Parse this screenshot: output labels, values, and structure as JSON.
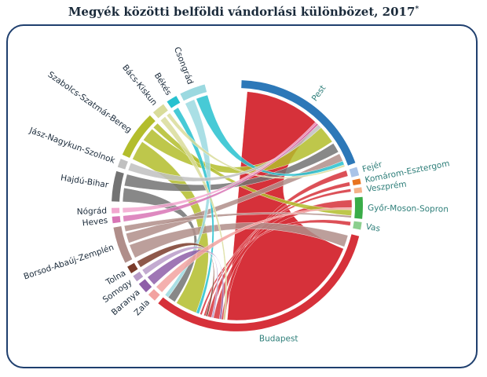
{
  "title": "Megyék közötti belföldi vándorlási különbözet, 2017",
  "title_mark": "*",
  "chord": {
    "type": "chord",
    "groups": [
      {
        "name": "Pest",
        "color": "#2d78b8",
        "a0": 2,
        "a1": 70
      },
      {
        "name": "Fejér",
        "color": "#a9c4e8",
        "a0": 72,
        "a1": 76
      },
      {
        "name": "Komárom-Esztergom",
        "color": "#e8731e",
        "a0": 77.5,
        "a1": 80
      },
      {
        "name": "Veszprém",
        "color": "#f5b289",
        "a0": 81.5,
        "a1": 84
      },
      {
        "name": "Győr-Moson-Sopron",
        "color": "#3aac48",
        "a0": 86,
        "a1": 96
      },
      {
        "name": "Vas",
        "color": "#8ccf8e",
        "a0": 97.5,
        "a1": 101
      },
      {
        "name": "Budapest",
        "color": "#d6313a",
        "a0": 104,
        "a1": 219
      },
      {
        "name": "Zala",
        "color": "#f2a2a0",
        "a0": 221,
        "a1": 225
      },
      {
        "name": "Baranya",
        "color": "#8e5ea8",
        "a0": 226.5,
        "a1": 231.5
      },
      {
        "name": "Somogy",
        "color": "#b89bc8",
        "a0": 233,
        "a1": 236
      },
      {
        "name": "Tolna",
        "color": "#7a3b2a",
        "a0": 237.5,
        "a1": 241
      },
      {
        "name": "Borsod-Abaúj-Zemplén",
        "color": "#b08e8a",
        "a0": 243,
        "a1": 260
      },
      {
        "name": "Heves",
        "color": "#d874b5",
        "a0": 262,
        "a1": 265
      },
      {
        "name": "Nógrád",
        "color": "#f2a6cf",
        "a0": 266.5,
        "a1": 269
      },
      {
        "name": "Hajdú-Bihar",
        "color": "#737373",
        "a0": 272,
        "a1": 286
      },
      {
        "name": "Jász-Nagykun-Szolnok",
        "color": "#c0c0c0",
        "a0": 288,
        "a1": 292
      },
      {
        "name": "Szabolcs-Szatmár-Bereg",
        "color": "#b3bd2c",
        "a0": 294,
        "a1": 316
      },
      {
        "name": "Bács-Kiskun",
        "color": "#d9dc9a",
        "a0": 318,
        "a1": 324
      },
      {
        "name": "Békés",
        "color": "#27c1cf",
        "a0": 326,
        "a1": 331
      },
      {
        "name": "Csongrád",
        "color": "#9bd9e0",
        "a0": 333,
        "a1": 345
      }
    ],
    "ribbons": [
      {
        "from": "Budapest",
        "to": "Pest",
        "s": [
          112,
          185
        ],
        "t": [
          5,
          45
        ],
        "color": "#d6313a"
      },
      {
        "from": "Budapest",
        "to": "Fejér",
        "s": [
          186,
          188
        ],
        "t": [
          72,
          75
        ],
        "color": "#d6313a"
      },
      {
        "from": "Budapest",
        "to": "Győr-Moson-Sopron",
        "s": [
          189,
          192
        ],
        "t": [
          87,
          91
        ],
        "color": "#d6313a"
      },
      {
        "from": "Budapest",
        "to": "Komárom-Esztergom",
        "s": [
          193,
          195
        ],
        "t": [
          78,
          80
        ],
        "color": "#d6313a"
      },
      {
        "from": "Budapest",
        "to": "Veszprém",
        "s": [
          196,
          197
        ],
        "t": [
          81.5,
          83
        ],
        "color": "#d6313a"
      },
      {
        "from": "Budapest",
        "to": "Vas",
        "s": [
          198,
          199
        ],
        "t": [
          98,
          100
        ],
        "color": "#d6313a"
      },
      {
        "from": "Szabolcs-Szatmár-Bereg",
        "to": "Budapest",
        "s": [
          294,
          304
        ],
        "t": [
          201,
          212
        ],
        "color": "#b3bd2c"
      },
      {
        "from": "Szabolcs-Szatmár-Bereg",
        "to": "Pest",
        "s": [
          305,
          312
        ],
        "t": [
          47,
          56
        ],
        "color": "#b3bd2c"
      },
      {
        "from": "Szabolcs-Szatmár-Bereg",
        "to": "Győr-Moson-Sopron",
        "s": [
          313,
          316
        ],
        "t": [
          92,
          95
        ],
        "color": "#b3bd2c"
      },
      {
        "from": "Hajdú-Bihar",
        "to": "Budapest",
        "s": [
          272,
          279
        ],
        "t": [
          213,
          217
        ],
        "color": "#737373"
      },
      {
        "from": "Hajdú-Bihar",
        "to": "Pest",
        "s": [
          280,
          286
        ],
        "t": [
          57,
          62
        ],
        "color": "#737373"
      },
      {
        "from": "Borsod-Abaúj-Zemplén",
        "to": "Budapest",
        "s": [
          243,
          250
        ],
        "t": [
          105,
          111
        ],
        "color": "#b08e8a"
      },
      {
        "from": "Borsod-Abaúj-Zemplén",
        "to": "Pest",
        "s": [
          251,
          256
        ],
        "t": [
          63,
          67
        ],
        "color": "#b08e8a"
      },
      {
        "from": "Borsod-Abaúj-Zemplén",
        "to": "Győr-Moson-Sopron",
        "s": [
          257,
          260
        ],
        "t": [
          95,
          96
        ],
        "color": "#b08e8a"
      },
      {
        "from": "Csongrád",
        "to": "Budapest",
        "s": [
          333,
          338
        ],
        "t": [
          217,
          219
        ],
        "color": "#9bd9e0"
      },
      {
        "from": "Csongrád",
        "to": "Pest",
        "s": [
          339,
          345
        ],
        "t": [
          67,
          69
        ],
        "color": "#27c1cf"
      },
      {
        "from": "Békés",
        "to": "Budapest",
        "s": [
          326,
          329
        ],
        "t": [
          199.5,
          201
        ],
        "color": "#27c1cf"
      },
      {
        "from": "Bács-Kiskun",
        "to": "Budapest",
        "s": [
          318,
          321
        ],
        "t": [
          186,
          187
        ],
        "color": "#d9dc9a"
      },
      {
        "from": "Bács-Kiskun",
        "to": "Pest",
        "s": [
          322,
          324
        ],
        "t": [
          69,
          70
        ],
        "color": "#d9dc9a"
      },
      {
        "from": "Jász-Nagykun-Szolnok",
        "to": "Pest",
        "s": [
          288,
          292
        ],
        "t": [
          45,
          47
        ],
        "color": "#c0c0c0"
      },
      {
        "from": "Heves",
        "to": "Pest",
        "s": [
          262,
          265
        ],
        "t": [
          44,
          45
        ],
        "color": "#d874b5"
      },
      {
        "from": "Nógrád",
        "to": "Pest",
        "s": [
          266.5,
          269
        ],
        "t": [
          43,
          44
        ],
        "color": "#f2a6cf"
      },
      {
        "from": "Baranya",
        "to": "Budapest",
        "s": [
          226.5,
          231.5
        ],
        "t": [
          188,
          189
        ],
        "color": "#8e5ea8"
      },
      {
        "from": "Somogy",
        "to": "Budapest",
        "s": [
          233,
          236
        ],
        "t": [
          192,
          193
        ],
        "color": "#b89bc8"
      },
      {
        "from": "Tolna",
        "to": "Budapest",
        "s": [
          237.5,
          241
        ],
        "t": [
          195,
          196
        ],
        "color": "#7a3b2a"
      },
      {
        "from": "Zala",
        "to": "Győr-Moson-Sopron",
        "s": [
          221,
          225
        ],
        "t": [
          91,
          92
        ],
        "color": "#f2a2a0"
      }
    ]
  }
}
